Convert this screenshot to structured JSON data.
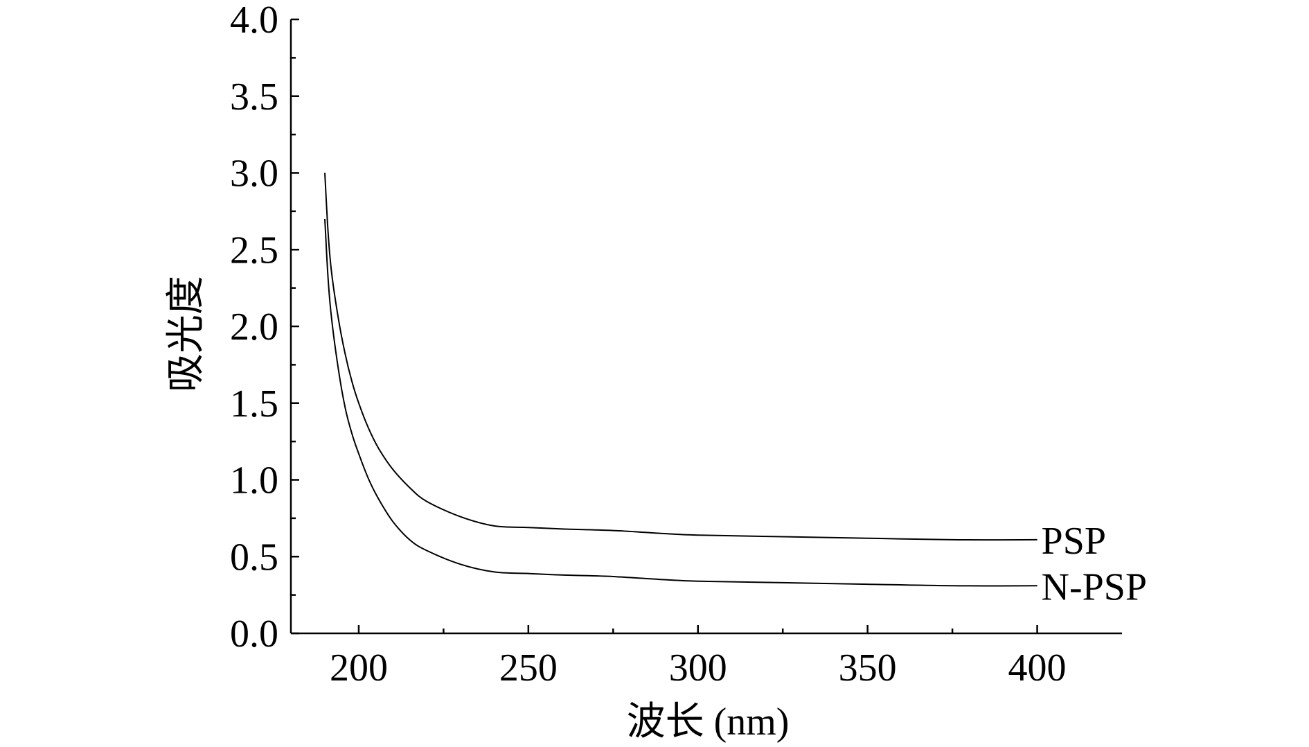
{
  "chart_data": {
    "type": "line",
    "xlabel": "波长 (nm)",
    "ylabel": "吸光度",
    "xlim": [
      180,
      425
    ],
    "ylim": [
      0,
      4.0
    ],
    "x_major_ticks": [
      200,
      250,
      300,
      350,
      400
    ],
    "x_tick_labels": [
      "200",
      "250",
      "300",
      "350",
      "400"
    ],
    "x_minor_ticks": [
      225,
      275,
      325,
      375
    ],
    "y_major_ticks": [
      0.0,
      0.5,
      1.0,
      1.5,
      2.0,
      2.5,
      3.0,
      3.5,
      4.0
    ],
    "y_tick_labels": [
      "0.0",
      "0.5",
      "1.0",
      "1.5",
      "2.0",
      "2.5",
      "3.0",
      "3.5",
      "4.0"
    ],
    "grid": false,
    "legend": "inline labels at right end of each line",
    "series": [
      {
        "name": "PSP",
        "x": [
          190,
          191,
          192,
          194,
          196,
          198,
          200,
          203,
          206,
          210,
          215,
          220,
          230,
          240,
          250,
          260,
          275,
          290,
          300,
          325,
          350,
          375,
          400
        ],
        "y": [
          3.0,
          2.6,
          2.35,
          2.05,
          1.82,
          1.64,
          1.5,
          1.33,
          1.2,
          1.07,
          0.95,
          0.86,
          0.76,
          0.7,
          0.69,
          0.68,
          0.67,
          0.65,
          0.64,
          0.63,
          0.62,
          0.61,
          0.61
        ]
      },
      {
        "name": "N-PSP",
        "x": [
          190,
          191,
          192,
          194,
          196,
          198,
          200,
          203,
          206,
          210,
          215,
          220,
          230,
          240,
          250,
          260,
          275,
          290,
          300,
          325,
          350,
          375,
          400
        ],
        "y": [
          2.7,
          2.3,
          2.05,
          1.72,
          1.47,
          1.3,
          1.17,
          1.0,
          0.87,
          0.73,
          0.61,
          0.54,
          0.45,
          0.4,
          0.39,
          0.38,
          0.37,
          0.35,
          0.34,
          0.33,
          0.32,
          0.31,
          0.31
        ]
      }
    ]
  }
}
